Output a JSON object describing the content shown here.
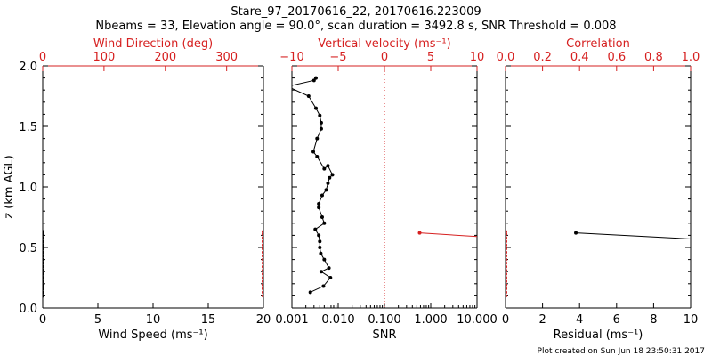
{
  "title_line1": "Stare_97_20170616_22, 20170616.223009",
  "title_line2": "Nbeams = 33, Elevation angle = 90.0°, scan duration = 3492.8 s, SNR Threshold = 0.008",
  "footer": "Plot created on Sun Jun 18 23:50:31 2017",
  "colors": {
    "axis": "#000000",
    "accent": "#d62020"
  },
  "chart_data": [
    {
      "type": "line",
      "ylabel": "z (km AGL)",
      "ylim": [
        0,
        2.0
      ],
      "y_ticks": [
        "0.0",
        "0.5",
        "1.0",
        "1.5",
        "2.0"
      ],
      "xlabel": "Wind Speed (ms⁻¹)",
      "xlim": [
        0,
        20
      ],
      "x_ticks": [
        "0",
        "5",
        "10",
        "15",
        "20"
      ],
      "top_label": "Wind Direction (deg)",
      "top_xlim": [
        0,
        360
      ],
      "top_ticks": [
        "0",
        "100",
        "200",
        "300"
      ],
      "series": [
        {
          "color": "#000000",
          "x": [
            0,
            0,
            0,
            0,
            0,
            0,
            0,
            0,
            0,
            0,
            0,
            0,
            0,
            0,
            0,
            0,
            0,
            0,
            0
          ],
          "y": [
            0.1,
            0.13,
            0.16,
            0.19,
            0.22,
            0.25,
            0.28,
            0.31,
            0.34,
            0.37,
            0.4,
            0.43,
            0.46,
            0.49,
            0.52,
            0.55,
            0.58,
            0.61,
            0.63
          ]
        },
        {
          "color": "#d62020",
          "axis": "top",
          "x": [
            360,
            360,
            360,
            360,
            360,
            360,
            360,
            360,
            360,
            360,
            360,
            360,
            360,
            360,
            360,
            360,
            360,
            360,
            360
          ],
          "y": [
            0.1,
            0.13,
            0.16,
            0.19,
            0.22,
            0.25,
            0.28,
            0.31,
            0.34,
            0.37,
            0.4,
            0.43,
            0.46,
            0.49,
            0.52,
            0.55,
            0.58,
            0.61,
            0.63
          ]
        }
      ]
    },
    {
      "type": "line",
      "ylim": [
        0,
        2.0
      ],
      "xlabel": "SNR",
      "x_scale": "log",
      "xlim": [
        0.001,
        10
      ],
      "x_ticks": [
        "0.001",
        "0.010",
        "0.100",
        "1.000",
        "10.000"
      ],
      "top_label": "Vertical velocity (ms⁻¹)",
      "top_xlim": [
        -10,
        10
      ],
      "top_ticks": [
        "−10",
        "−5",
        "0",
        "5",
        "10"
      ],
      "vline_top_x": 0,
      "series": [
        {
          "color": "#000000",
          "x": [
            0.0025,
            0.0048,
            0.0068,
            0.0043,
            0.0063,
            0.005,
            0.0042,
            0.004,
            0.004,
            0.0038,
            0.0032,
            0.005,
            0.0045,
            0.0038,
            0.0038,
            0.0045,
            0.0055,
            0.006,
            0.0065,
            0.0075,
            0.006,
            0.005,
            0.0035,
            0.0029,
            0.0035,
            0.0043,
            0.0043,
            0.004,
            0.0033,
            0.0023,
            0.0008,
            0.003,
            0.0033
          ],
          "y": [
            0.13,
            0.18,
            0.25,
            0.3,
            0.33,
            0.4,
            0.45,
            0.5,
            0.55,
            0.6,
            0.65,
            0.7,
            0.75,
            0.83,
            0.86,
            0.93,
            0.975,
            1.03,
            1.075,
            1.1,
            1.175,
            1.15,
            1.25,
            1.29,
            1.4,
            1.48,
            1.53,
            1.59,
            1.65,
            1.75,
            1.83,
            1.88,
            1.9
          ]
        },
        {
          "color": "#d62020",
          "axis": "top",
          "x": [
            3.8,
            10
          ],
          "y": [
            0.62,
            0.59
          ]
        }
      ]
    },
    {
      "type": "line",
      "ylim": [
        0,
        2.0
      ],
      "xlabel": "Residual (ms⁻¹)",
      "xlim": [
        0,
        10
      ],
      "x_ticks": [
        "0",
        "2",
        "4",
        "6",
        "8",
        "10"
      ],
      "top_label": "Correlation",
      "top_xlim": [
        0,
        1
      ],
      "top_ticks": [
        "0.0",
        "0.2",
        "0.4",
        "0.6",
        "0.8",
        "1.0"
      ],
      "series": [
        {
          "color": "#000000",
          "x": [
            3.8,
            10
          ],
          "y": [
            0.62,
            0.57
          ]
        },
        {
          "color": "#d62020",
          "axis": "top",
          "x": [
            0,
            0,
            0,
            0,
            0,
            0,
            0,
            0,
            0,
            0,
            0,
            0,
            0,
            0,
            0,
            0,
            0,
            0,
            0
          ],
          "y": [
            0.1,
            0.13,
            0.16,
            0.19,
            0.22,
            0.25,
            0.28,
            0.31,
            0.34,
            0.37,
            0.4,
            0.43,
            0.46,
            0.49,
            0.52,
            0.55,
            0.58,
            0.61,
            0.63
          ]
        }
      ]
    }
  ]
}
